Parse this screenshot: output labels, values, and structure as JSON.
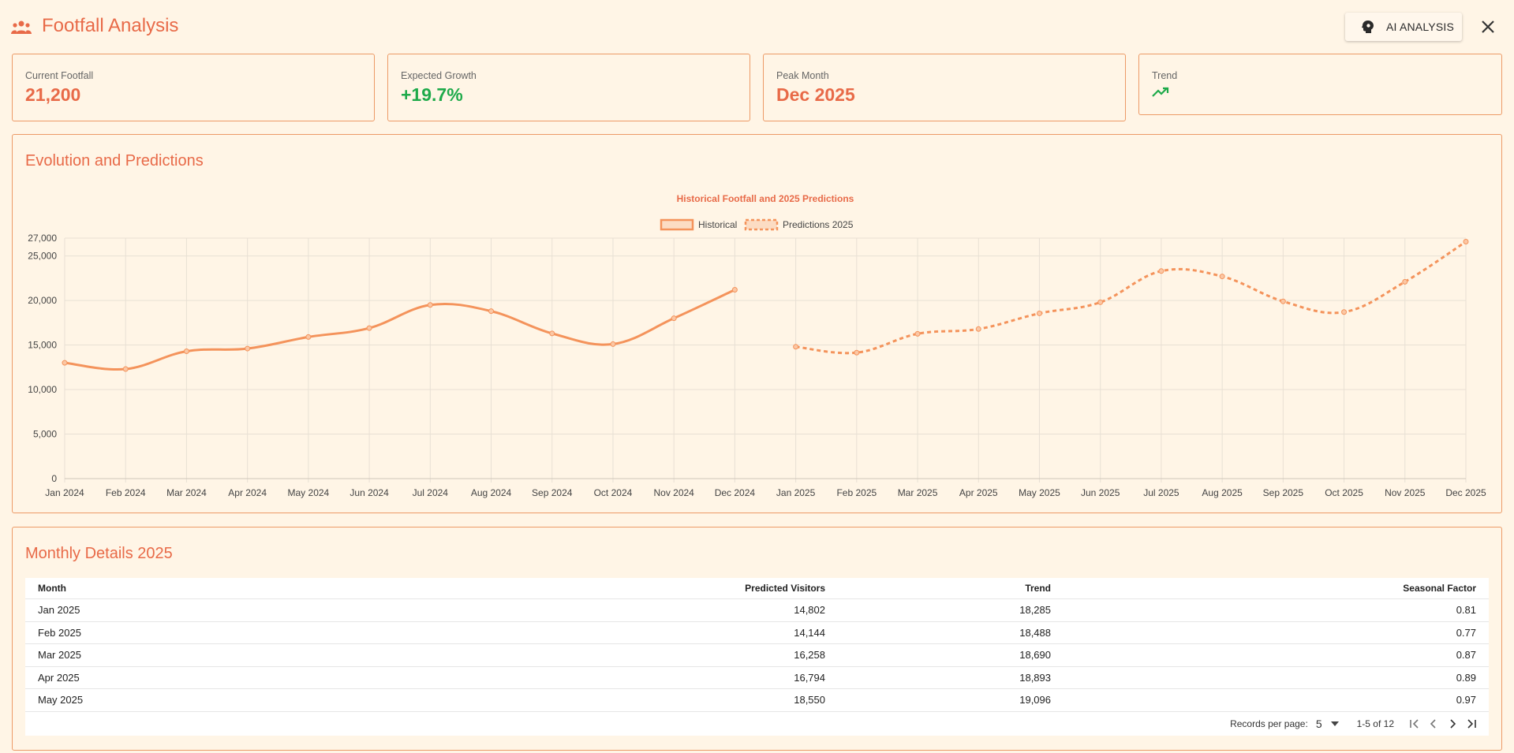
{
  "header": {
    "title": "Footfall Analysis",
    "ai_button": "AI ANALYSIS",
    "icons": {
      "title": "people-icon",
      "ai": "brain-icon",
      "close": "close-icon"
    }
  },
  "cards": [
    {
      "label": "Current Footfall",
      "value": "21,200"
    },
    {
      "label": "Expected Growth",
      "value": "+19.7%"
    },
    {
      "label": "Peak Month",
      "value": "Dec 2025"
    },
    {
      "label": "Trend",
      "icon": "trending-up-icon"
    }
  ],
  "colors": {
    "accent": "#e86a48",
    "line": "#f4935b",
    "growth": "#1eaa4a",
    "border": "#ec9a66",
    "background": "#fff5e6"
  },
  "chart_section": {
    "title": "Evolution and Predictions"
  },
  "chart_data": {
    "type": "line",
    "title": "Historical Footfall and 2025 Predictions",
    "legend": [
      "Historical",
      "Predictions 2025"
    ],
    "legend_position": "top",
    "categories": [
      "Jan 2024",
      "Feb 2024",
      "Mar 2024",
      "Apr 2024",
      "May 2024",
      "Jun 2024",
      "Jul 2024",
      "Aug 2024",
      "Sep 2024",
      "Oct 2024",
      "Nov 2024",
      "Dec 2024",
      "Jan 2025",
      "Feb 2025",
      "Mar 2025",
      "Apr 2025",
      "May 2025",
      "Jun 2025",
      "Jul 2025",
      "Aug 2025",
      "Sep 2025",
      "Oct 2025",
      "Nov 2025",
      "Dec 2025"
    ],
    "series": [
      {
        "name": "Historical",
        "style": "solid",
        "values": [
          13000,
          12300,
          14300,
          14600,
          15900,
          16900,
          19500,
          18800,
          16300,
          15100,
          18000,
          21200,
          null,
          null,
          null,
          null,
          null,
          null,
          null,
          null,
          null,
          null,
          null,
          null
        ]
      },
      {
        "name": "Predictions 2025",
        "style": "dashed",
        "values": [
          null,
          null,
          null,
          null,
          null,
          null,
          null,
          null,
          null,
          null,
          null,
          null,
          14802,
          14144,
          16258,
          16794,
          18550,
          19800,
          23300,
          22700,
          19900,
          18700,
          22100,
          26600
        ]
      }
    ],
    "yticks": [
      "27,000",
      "25,000",
      "20,000",
      "15,000",
      "10,000",
      "5,000",
      "0"
    ],
    "ytick_values": [
      27000,
      25000,
      20000,
      15000,
      10000,
      5000,
      0
    ],
    "ylim": [
      0,
      27000
    ],
    "grid": true
  },
  "table_section": {
    "title": "Monthly Details 2025",
    "columns": [
      "Month",
      "Predicted Visitors",
      "Trend",
      "Seasonal Factor"
    ],
    "rows": [
      [
        "Jan 2025",
        "14,802",
        "18,285",
        "0.81"
      ],
      [
        "Feb 2025",
        "14,144",
        "18,488",
        "0.77"
      ],
      [
        "Mar 2025",
        "16,258",
        "18,690",
        "0.87"
      ],
      [
        "Apr 2025",
        "16,794",
        "18,893",
        "0.89"
      ],
      [
        "May 2025",
        "18,550",
        "19,096",
        "0.97"
      ]
    ],
    "pagination": {
      "records_label": "Records per page:",
      "per_page": "5",
      "range": "1-5 of 12"
    }
  }
}
